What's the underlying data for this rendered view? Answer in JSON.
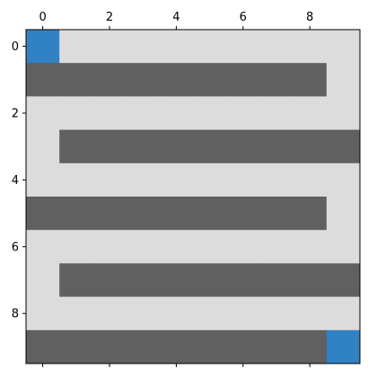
{
  "chart_data": {
    "type": "heatmap",
    "title": "",
    "xlabel": "",
    "ylabel": "",
    "x_axis_position": "top",
    "origin": "top-left",
    "xlim": [
      -0.5,
      9.5
    ],
    "ylim": [
      9.5,
      -0.5
    ],
    "x_ticks": [
      0,
      2,
      4,
      6,
      8
    ],
    "x_tick_labels": [
      "0",
      "2",
      "4",
      "6",
      "8"
    ],
    "y_ticks": [
      0,
      2,
      4,
      6,
      8
    ],
    "y_tick_labels": [
      "0",
      "2",
      "4",
      "6",
      "8"
    ],
    "grid": false,
    "legend": false,
    "colors": {
      "0": "#dcdcdc",
      "1": "#606060",
      "2": "#3182c3"
    },
    "matrix": [
      [
        2,
        0,
        0,
        0,
        0,
        0,
        0,
        0,
        0,
        0
      ],
      [
        1,
        1,
        1,
        1,
        1,
        1,
        1,
        1,
        1,
        0
      ],
      [
        0,
        0,
        0,
        0,
        0,
        0,
        0,
        0,
        0,
        0
      ],
      [
        0,
        1,
        1,
        1,
        1,
        1,
        1,
        1,
        1,
        1
      ],
      [
        0,
        0,
        0,
        0,
        0,
        0,
        0,
        0,
        0,
        0
      ],
      [
        1,
        1,
        1,
        1,
        1,
        1,
        1,
        1,
        1,
        0
      ],
      [
        0,
        0,
        0,
        0,
        0,
        0,
        0,
        0,
        0,
        0
      ],
      [
        0,
        1,
        1,
        1,
        1,
        1,
        1,
        1,
        1,
        1
      ],
      [
        0,
        0,
        0,
        0,
        0,
        0,
        0,
        0,
        0,
        0
      ],
      [
        1,
        1,
        1,
        1,
        1,
        1,
        1,
        1,
        1,
        2
      ]
    ]
  }
}
